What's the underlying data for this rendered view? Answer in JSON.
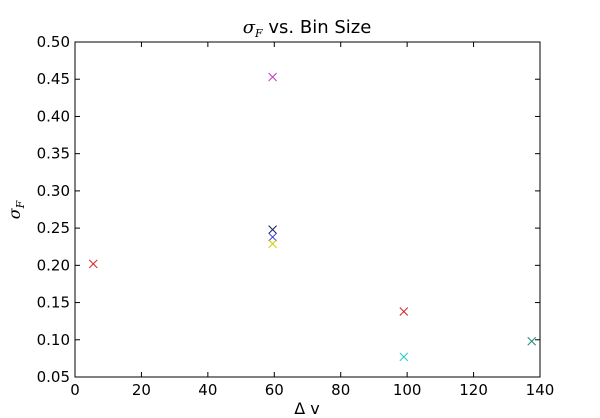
{
  "chart_data": {
    "type": "scatter",
    "title": {
      "symbol": "σ",
      "subscript": "F",
      "rest": " vs. Bin Size"
    },
    "xlabel": "Δ v",
    "ylabel": {
      "symbol": "σ",
      "subscript": "F"
    },
    "xlim": [
      0,
      140
    ],
    "ylim": [
      0.05,
      0.5
    ],
    "xticks": [
      0,
      20,
      40,
      60,
      80,
      100,
      120,
      140
    ],
    "xtick_labels": [
      "0",
      "20",
      "40",
      "60",
      "80",
      "100",
      "120",
      "140"
    ],
    "yticks": [
      0.05,
      0.1,
      0.15,
      0.2,
      0.25,
      0.3,
      0.35,
      0.4,
      0.45,
      0.5
    ],
    "ytick_labels": [
      "0.05",
      "0.10",
      "0.15",
      "0.20",
      "0.25",
      "0.30",
      "0.35",
      "0.40",
      "0.45",
      "0.50"
    ],
    "marker": "x",
    "grid": false,
    "points": [
      {
        "x": 5.5,
        "y": 0.202,
        "color": "#d62728"
      },
      {
        "x": 59.5,
        "y": 0.453,
        "color": "#cc33cc"
      },
      {
        "x": 59.5,
        "y": 0.248,
        "color": "#1a1a66"
      },
      {
        "x": 59.5,
        "y": 0.238,
        "color": "#3333ee"
      },
      {
        "x": 59.5,
        "y": 0.229,
        "color": "#cccc00"
      },
      {
        "x": 99.0,
        "y": 0.138,
        "color": "#d62728"
      },
      {
        "x": 99.0,
        "y": 0.077,
        "color": "#22cccc"
      },
      {
        "x": 137.5,
        "y": 0.098,
        "color": "#228877"
      }
    ]
  }
}
